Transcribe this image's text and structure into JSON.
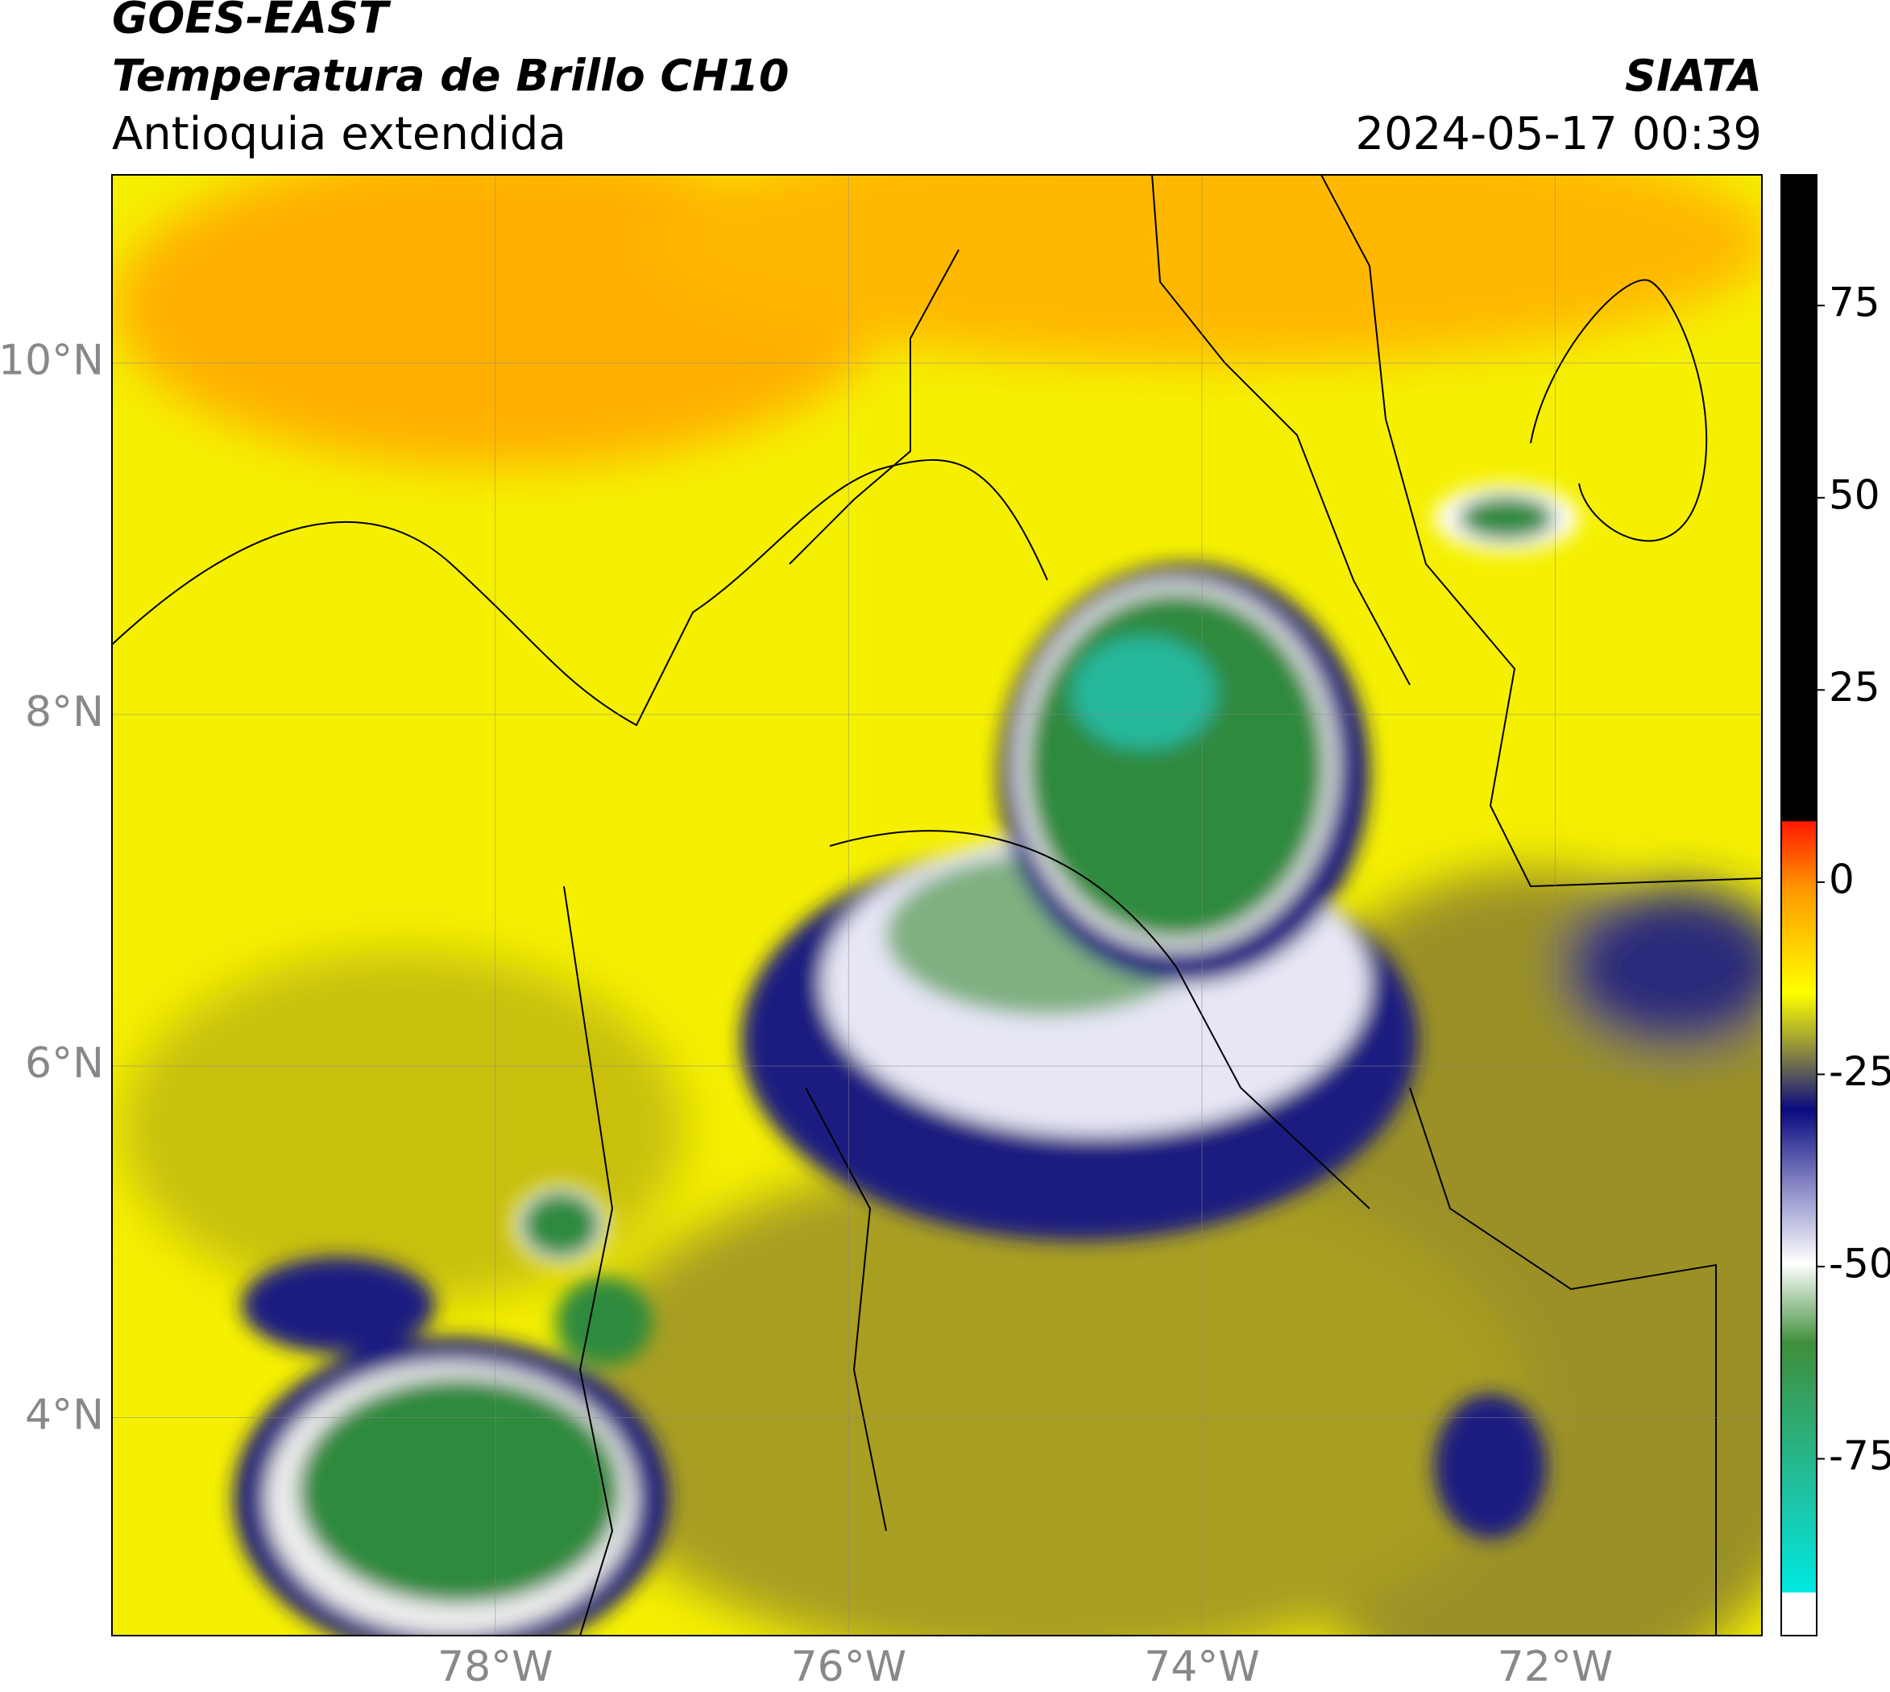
{
  "header": {
    "satellite": "GOES-EAST",
    "product": "Temperatura de Brillo CH10",
    "region": "Antioquia extendida",
    "source": "SIATA",
    "datetime": "2024-05-17 00:39"
  },
  "map": {
    "xlim": [
      -80.17,
      -70.83
    ],
    "ylim": [
      2.76,
      11.07
    ],
    "xticks": [
      {
        "value": -78,
        "label": "78°W"
      },
      {
        "value": -76,
        "label": "76°W"
      },
      {
        "value": -74,
        "label": "74°W"
      },
      {
        "value": -72,
        "label": "72°W"
      }
    ],
    "yticks": [
      {
        "value": 4,
        "label": "4°N"
      },
      {
        "value": 6,
        "label": "6°N"
      },
      {
        "value": 8,
        "label": "8°N"
      },
      {
        "value": 10,
        "label": "10°N"
      }
    ],
    "grid": true
  },
  "colorbar": {
    "lim": [
      -98,
      92
    ],
    "ticks": [
      75,
      50,
      25,
      0,
      -25,
      -50,
      -75
    ]
  }
}
